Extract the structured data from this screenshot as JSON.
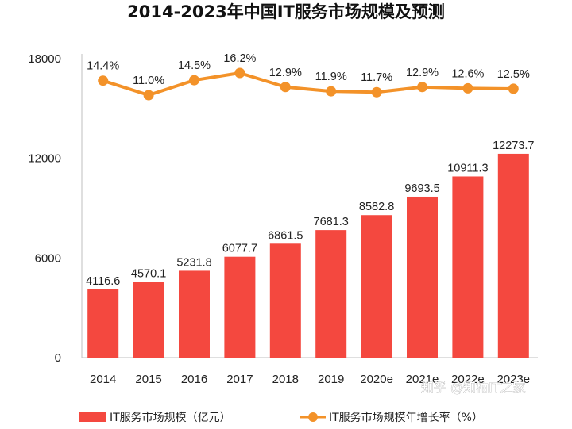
{
  "chart_data": {
    "type": "bar",
    "title": "2014-2023年中国IT服务市场规模及预测",
    "categories": [
      "2014",
      "2015",
      "2016",
      "2017",
      "2018",
      "2019",
      "2020e",
      "2021e",
      "2022e",
      "2023e"
    ],
    "ylim": [
      0,
      18000
    ],
    "yticks": [
      "0",
      "6000",
      "12000",
      "18000"
    ],
    "series": [
      {
        "name": "IT服务市场规模（亿元）",
        "type": "bar",
        "color": "#f4483f",
        "values": [
          4116.6,
          4570.1,
          5231.8,
          6077.7,
          6861.5,
          7681.3,
          8582.8,
          9693.5,
          10911.3,
          12273.7
        ],
        "labels": [
          "4116.6",
          "4570.1",
          "5231.8",
          "6077.7",
          "6861.5",
          "7681.3",
          "8582.8",
          "9693.5",
          "10911.3",
          "12273.7"
        ]
      },
      {
        "name": "IT服务市场规模年增长率（%）",
        "type": "line",
        "color": "#f39229",
        "values": [
          14.4,
          11.0,
          14.5,
          16.2,
          12.9,
          11.9,
          11.7,
          12.9,
          12.6,
          12.5
        ],
        "labels": [
          "14.4%",
          "11.0%",
          "14.5%",
          "16.2%",
          "12.9%",
          "11.9%",
          "11.7%",
          "12.9%",
          "12.6%",
          "12.5%"
        ]
      }
    ],
    "legend_position": "bottom",
    "grid": false
  },
  "watermark": "知乎 @知柚IT之家"
}
